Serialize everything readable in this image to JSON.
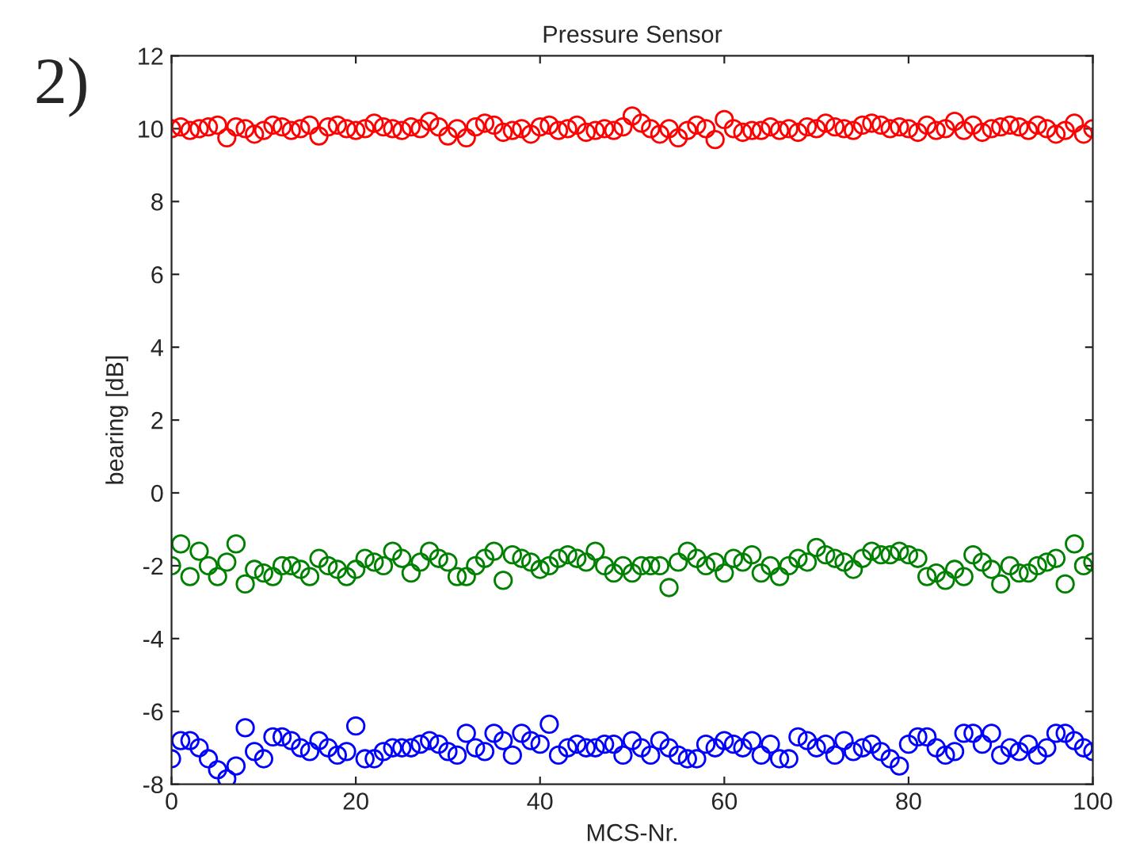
{
  "chart_data": {
    "type": "scatter",
    "title": "Pressure Sensor",
    "xlabel": "MCS-Nr.",
    "ylabel": "bearing [dB]",
    "annotations": [
      "2)"
    ],
    "x": [
      0,
      1,
      2,
      3,
      4,
      5,
      6,
      7,
      8,
      9,
      10,
      11,
      12,
      13,
      14,
      15,
      16,
      17,
      18,
      19,
      20,
      21,
      22,
      23,
      24,
      25,
      26,
      27,
      28,
      29,
      30,
      31,
      32,
      33,
      34,
      35,
      36,
      37,
      38,
      39,
      40,
      41,
      42,
      43,
      44,
      45,
      46,
      47,
      48,
      49,
      50,
      51,
      52,
      53,
      54,
      55,
      56,
      57,
      58,
      59,
      60,
      61,
      62,
      63,
      64,
      65,
      66,
      67,
      68,
      69,
      70,
      71,
      72,
      73,
      74,
      75,
      76,
      77,
      78,
      79,
      80,
      81,
      82,
      83,
      84,
      85,
      86,
      87,
      88,
      89,
      90,
      91,
      92,
      93,
      94,
      95,
      96,
      97,
      98,
      99,
      100
    ],
    "series": [
      {
        "color": "#ff0000",
        "values": [
          10.0,
          10.05,
          9.95,
          10.0,
          10.05,
          10.1,
          9.75,
          10.05,
          10.0,
          9.85,
          9.95,
          10.1,
          10.05,
          9.95,
          10.0,
          10.1,
          9.8,
          10.05,
          10.1,
          10.0,
          9.95,
          10.0,
          10.15,
          10.05,
          10.0,
          9.95,
          10.05,
          10.0,
          10.2,
          10.05,
          9.8,
          10.0,
          9.75,
          10.05,
          10.15,
          10.1,
          9.9,
          9.95,
          10.0,
          9.85,
          10.05,
          10.1,
          9.95,
          10.0,
          10.1,
          9.9,
          9.95,
          10.0,
          9.95,
          10.05,
          10.35,
          10.15,
          10.0,
          9.85,
          10.0,
          9.75,
          9.95,
          10.1,
          10.0,
          9.7,
          10.25,
          10.0,
          9.9,
          9.95,
          9.95,
          10.05,
          9.95,
          10.0,
          9.9,
          10.05,
          10.0,
          10.15,
          10.05,
          10.0,
          9.95,
          10.1,
          10.15,
          10.1,
          10.0,
          10.05,
          10.0,
          9.9,
          10.1,
          9.95,
          10.0,
          10.2,
          9.95,
          10.1,
          9.9,
          10.0,
          10.05,
          10.1,
          10.05,
          9.95,
          10.1,
          10.0,
          9.85,
          9.95,
          10.15,
          9.85,
          10.0
        ]
      },
      {
        "color": "#008000",
        "values": [
          -2.0,
          -1.4,
          -2.3,
          -1.6,
          -2.0,
          -2.3,
          -1.9,
          -1.4,
          -2.5,
          -2.1,
          -2.2,
          -2.3,
          -2.0,
          -2.0,
          -2.1,
          -2.3,
          -1.8,
          -2.0,
          -2.1,
          -2.3,
          -2.1,
          -1.8,
          -1.9,
          -2.0,
          -1.6,
          -1.8,
          -2.2,
          -1.9,
          -1.6,
          -1.8,
          -1.9,
          -2.3,
          -2.3,
          -2.0,
          -1.8,
          -1.6,
          -2.4,
          -1.7,
          -1.8,
          -1.9,
          -2.1,
          -2.0,
          -1.8,
          -1.7,
          -1.8,
          -1.9,
          -1.6,
          -2.0,
          -2.2,
          -2.0,
          -2.2,
          -2.0,
          -2.0,
          -2.0,
          -2.6,
          -1.9,
          -1.6,
          -1.8,
          -2.0,
          -1.9,
          -2.2,
          -1.8,
          -1.9,
          -1.7,
          -2.2,
          -2.0,
          -2.3,
          -2.0,
          -1.8,
          -1.9,
          -1.5,
          -1.7,
          -1.8,
          -1.9,
          -2.1,
          -1.8,
          -1.6,
          -1.7,
          -1.7,
          -1.6,
          -1.7,
          -1.8,
          -2.3,
          -2.2,
          -2.4,
          -2.1,
          -2.3,
          -1.7,
          -1.9,
          -2.1,
          -2.5,
          -2.0,
          -2.2,
          -2.2,
          -2.0,
          -1.9,
          -1.8,
          -2.5,
          -1.4,
          -2.0,
          -1.9
        ]
      },
      {
        "color": "#0000ff",
        "values": [
          -7.3,
          -6.8,
          -6.8,
          -7.0,
          -7.3,
          -7.6,
          -7.85,
          -7.5,
          -6.45,
          -7.1,
          -7.3,
          -6.7,
          -6.7,
          -6.8,
          -7.0,
          -7.1,
          -6.8,
          -7.0,
          -7.2,
          -7.1,
          -6.4,
          -7.3,
          -7.3,
          -7.1,
          -7.0,
          -7.0,
          -7.0,
          -6.9,
          -6.8,
          -6.9,
          -7.1,
          -7.2,
          -6.6,
          -7.0,
          -7.1,
          -6.6,
          -6.8,
          -7.2,
          -6.6,
          -6.8,
          -6.9,
          -6.35,
          -7.2,
          -7.0,
          -6.9,
          -7.0,
          -7.0,
          -6.9,
          -6.9,
          -7.2,
          -6.8,
          -7.0,
          -7.2,
          -6.8,
          -7.0,
          -7.2,
          -7.3,
          -7.3,
          -6.9,
          -7.0,
          -6.8,
          -6.9,
          -7.0,
          -6.8,
          -7.2,
          -6.9,
          -7.3,
          -7.3,
          -6.7,
          -6.8,
          -7.0,
          -6.9,
          -7.2,
          -6.8,
          -7.1,
          -7.0,
          -6.9,
          -7.1,
          -7.3,
          -7.5,
          -6.9,
          -6.7,
          -6.7,
          -7.0,
          -7.2,
          -7.1,
          -6.6,
          -6.6,
          -6.9,
          -6.6,
          -7.2,
          -7.0,
          -7.1,
          -6.9,
          -7.2,
          -7.0,
          -6.6,
          -6.6,
          -6.8,
          -7.0,
          -7.1
        ]
      }
    ],
    "xlim": [
      0,
      100
    ],
    "xticks": [
      0,
      20,
      40,
      60,
      80,
      100
    ],
    "ylim": [
      -8,
      12
    ],
    "yticks": [
      -8,
      -6,
      -4,
      -2,
      0,
      2,
      4,
      6,
      8,
      10,
      12
    ],
    "marker": "circle",
    "grid": false
  }
}
